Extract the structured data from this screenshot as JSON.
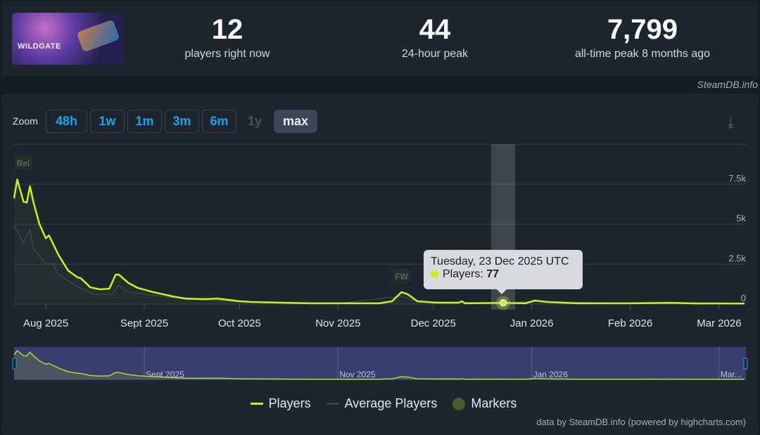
{
  "game": {
    "logo_text": "WILDGATE"
  },
  "stats": [
    {
      "value": "12",
      "label": "players right now"
    },
    {
      "value": "44",
      "label": "24-hour peak"
    },
    {
      "value": "7,799",
      "label": "all-time peak 8 months ago"
    }
  ],
  "credit_top": "SteamDB.info",
  "zoom": {
    "label": "Zoom",
    "buttons": [
      "48h",
      "1w",
      "1m",
      "3m",
      "6m",
      "1y",
      "max"
    ],
    "active": "max",
    "disabled": "1y"
  },
  "tooltip": {
    "date": "Tuesday, 23 Dec 2025 UTC",
    "series": "Players:",
    "value": "77"
  },
  "legend": [
    "Players",
    "Average Players",
    "Markers"
  ],
  "credit": "data by SteamDB.info (powered by highcharts.com)",
  "colors": {
    "players": "#c6f31c",
    "average": "#4a5260",
    "navigator": "#363f70"
  },
  "chart_data": {
    "type": "line",
    "title": "",
    "xlabel": "",
    "ylabel": "",
    "xlim": [
      "2025-07-22",
      "2026-03-09"
    ],
    "ylim": [
      0,
      10000
    ],
    "yticks": [
      {
        "v": 0,
        "label": "0"
      },
      {
        "v": 2500,
        "label": "2.5k"
      },
      {
        "v": 5000,
        "label": "5k"
      },
      {
        "v": 7500,
        "label": "7.5k"
      }
    ],
    "xticks": [
      {
        "d": "2025-08-01",
        "label": "Aug 2025"
      },
      {
        "d": "2025-09-01",
        "label": "Sept 2025"
      },
      {
        "d": "2025-10-01",
        "label": "Oct 2025"
      },
      {
        "d": "2025-11-01",
        "label": "Nov 2025"
      },
      {
        "d": "2025-12-01",
        "label": "Dec 2025"
      },
      {
        "d": "2026-01-01",
        "label": "Jan 2026"
      },
      {
        "d": "2026-02-01",
        "label": "Feb 2026"
      },
      {
        "d": "2026-03-01",
        "label": "Mar 2026"
      }
    ],
    "navigator_ticks": [
      {
        "d": "2025-09-01",
        "label": "Sept 2025"
      },
      {
        "d": "2025-11-01",
        "label": "Nov 2025"
      },
      {
        "d": "2026-01-01",
        "label": "Jan 2026"
      },
      {
        "d": "2026-03-01",
        "label": "Mar..."
      }
    ],
    "markers": [
      {
        "d": "2025-07-22",
        "label": "Rel"
      },
      {
        "d": "2025-11-21",
        "label": "FW"
      }
    ],
    "highlight": {
      "d": "2025-12-23",
      "value": 77
    },
    "series": [
      {
        "name": "Players",
        "points": [
          [
            "2025-07-22",
            6620
          ],
          [
            "2025-07-23",
            7799
          ],
          [
            "2025-07-25",
            6400
          ],
          [
            "2025-07-26",
            6360
          ],
          [
            "2025-07-27",
            7370
          ],
          [
            "2025-07-28",
            6450
          ],
          [
            "2025-07-30",
            5000
          ],
          [
            "2025-08-01",
            4120
          ],
          [
            "2025-08-02",
            4300
          ],
          [
            "2025-08-05",
            3070
          ],
          [
            "2025-08-08",
            2100
          ],
          [
            "2025-08-11",
            1670
          ],
          [
            "2025-08-12",
            1620
          ],
          [
            "2025-08-15",
            1050
          ],
          [
            "2025-08-18",
            920
          ],
          [
            "2025-08-21",
            965
          ],
          [
            "2025-08-23",
            1840
          ],
          [
            "2025-08-24",
            1840
          ],
          [
            "2025-08-27",
            1320
          ],
          [
            "2025-08-30",
            1010
          ],
          [
            "2025-09-03",
            790
          ],
          [
            "2025-09-07",
            610
          ],
          [
            "2025-09-10",
            480
          ],
          [
            "2025-09-14",
            350
          ],
          [
            "2025-09-20",
            310
          ],
          [
            "2025-09-24",
            350
          ],
          [
            "2025-10-01",
            175
          ],
          [
            "2025-10-05",
            130
          ],
          [
            "2025-10-14",
            90
          ],
          [
            "2025-10-23",
            50
          ],
          [
            "2025-11-01",
            50
          ],
          [
            "2025-11-14",
            50
          ],
          [
            "2025-11-18",
            175
          ],
          [
            "2025-11-21",
            750
          ],
          [
            "2025-11-23",
            610
          ],
          [
            "2025-11-26",
            175
          ],
          [
            "2025-12-02",
            90
          ],
          [
            "2025-12-09",
            90
          ],
          [
            "2025-12-10",
            175
          ],
          [
            "2025-12-11",
            50
          ],
          [
            "2025-12-23",
            77
          ],
          [
            "2025-12-30",
            50
          ],
          [
            "2026-01-02",
            220
          ],
          [
            "2026-01-06",
            130
          ],
          [
            "2026-01-15",
            50
          ],
          [
            "2026-02-01",
            50
          ],
          [
            "2026-02-14",
            80
          ],
          [
            "2026-02-22",
            40
          ],
          [
            "2026-03-09",
            30
          ]
        ]
      },
      {
        "name": "Average Players",
        "points": [
          [
            "2025-07-22",
            4900
          ],
          [
            "2025-07-25",
            3800
          ],
          [
            "2025-07-27",
            4700
          ],
          [
            "2025-07-28",
            3500
          ],
          [
            "2025-08-01",
            2500
          ],
          [
            "2025-08-03",
            2550
          ],
          [
            "2025-08-05",
            1840
          ],
          [
            "2025-08-10",
            1200
          ],
          [
            "2025-08-16",
            620
          ],
          [
            "2025-08-22",
            620
          ],
          [
            "2025-08-24",
            1180
          ],
          [
            "2025-08-27",
            760
          ],
          [
            "2025-09-03",
            560
          ],
          [
            "2025-09-14",
            300
          ],
          [
            "2025-10-01",
            150
          ],
          [
            "2025-11-01",
            40
          ],
          [
            "2025-11-21",
            500
          ],
          [
            "2025-11-26",
            150
          ],
          [
            "2025-12-23",
            60
          ],
          [
            "2026-01-02",
            180
          ],
          [
            "2026-02-01",
            40
          ],
          [
            "2026-03-09",
            25
          ]
        ]
      }
    ]
  }
}
